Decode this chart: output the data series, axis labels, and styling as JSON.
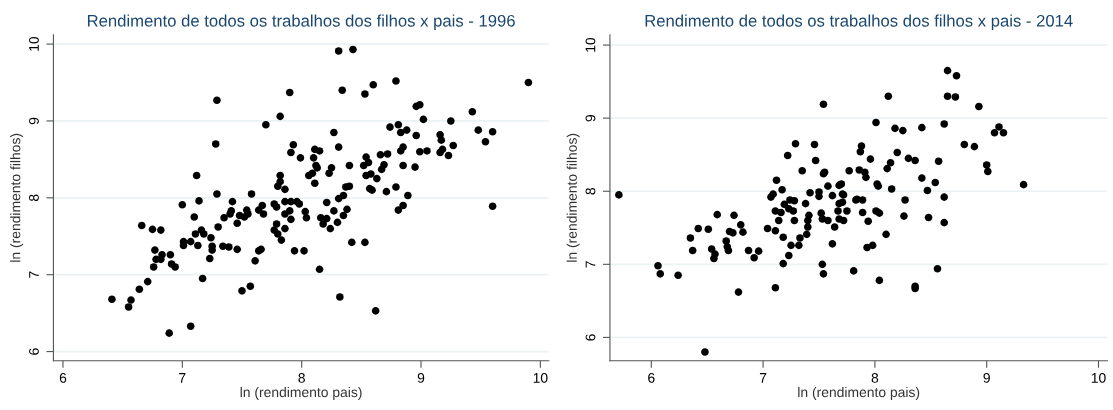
{
  "chart_data": [
    {
      "type": "scatter",
      "title": "Rendimento de todos os trabalhos dos filhos x pais - 1996",
      "xlabel": "ln (rendimento pais)",
      "ylabel": "ln (rendimento filhos)",
      "color": "#000000",
      "marker": "circle",
      "grid": "y",
      "xlim": [
        5.92,
        10.07
      ],
      "ylim": [
        5.88,
        10.12
      ],
      "xticks": [
        6,
        7,
        8,
        9,
        10
      ],
      "yticks": [
        6,
        7,
        8,
        9,
        10
      ],
      "x": [
        6.41,
        6.57,
        6.55,
        6.64,
        6.66,
        6.71,
        6.75,
        6.77,
        6.76,
        6.78,
        6.82,
        6.83,
        6.82,
        6.9,
        6.91,
        6.94,
        6.89,
        7.0,
        7.01,
        7.01,
        7.07,
        7.07,
        7.1,
        7.12,
        7.13,
        7.14,
        7.16,
        7.17,
        7.18,
        7.11,
        7.23,
        7.24,
        7.25,
        7.25,
        7.29,
        7.28,
        7.29,
        7.3,
        7.34,
        7.35,
        7.39,
        7.4,
        7.41,
        7.42,
        7.46,
        7.46,
        7.5,
        7.48,
        7.52,
        7.54,
        7.55,
        7.57,
        7.58,
        7.61,
        7.64,
        7.64,
        7.66,
        7.68,
        7.67,
        7.7,
        7.77,
        7.77,
        7.79,
        7.8,
        7.79,
        7.82,
        7.8,
        7.82,
        7.82,
        7.9,
        7.86,
        7.93,
        7.91,
        7.99,
        7.86,
        7.91,
        7.96,
        7.98,
        7.9,
        7.86,
        7.91,
        7.86,
        7.83,
        7.94,
        8.02,
        8.03,
        8.04,
        8.1,
        8.11,
        8.15,
        8.12,
        8.09,
        8.06,
        8.11,
        8.13,
        8.21,
        8.16,
        8.18,
        8.21,
        8.24,
        8.27,
        8.15,
        8.31,
        8.43,
        8.34,
        8.27,
        8.31,
        8.23,
        8.25,
        8.3,
        8.31,
        8.35,
        8.37,
        8.4,
        8.35,
        8.38,
        8.4,
        8.42,
        8.32,
        8.53,
        8.53,
        8.6,
        8.62,
        8.54,
        8.52,
        8.56,
        8.54,
        8.58,
        8.63,
        8.57,
        8.59,
        8.66,
        8.72,
        8.67,
        8.69,
        8.71,
        8.79,
        8.74,
        8.81,
        8.83,
        8.88,
        8.85,
        8.83,
        8.85,
        8.79,
        8.81,
        8.85,
        8.89,
        8.96,
        8.96,
        8.99,
        9.02,
        8.99,
        9.05,
        8.95,
        9.16,
        9.17,
        9.18,
        9.16,
        9.23,
        9.27,
        9.25,
        9.43,
        9.48,
        9.54,
        9.6,
        9.6,
        9.9
      ],
      "values": [
        6.68,
        6.67,
        6.58,
        6.81,
        7.64,
        6.91,
        7.59,
        7.32,
        7.1,
        7.2,
        7.58,
        7.26,
        7.2,
        7.26,
        7.14,
        7.1,
        6.24,
        7.91,
        7.43,
        7.38,
        6.33,
        7.43,
        7.75,
        8.29,
        7.38,
        7.96,
        7.58,
        6.95,
        7.53,
        7.53,
        7.21,
        7.48,
        7.37,
        7.32,
        9.27,
        8.7,
        8.05,
        7.62,
        7.37,
        7.74,
        7.36,
        7.79,
        7.83,
        7.95,
        7.67,
        7.33,
        6.79,
        7.77,
        7.75,
        7.84,
        7.79,
        6.85,
        8.05,
        7.18,
        7.84,
        7.31,
        7.33,
        7.79,
        7.9,
        8.95,
        7.92,
        7.58,
        7.66,
        8.15,
        7.88,
        9.06,
        7.53,
        8.29,
        8.21,
        9.37,
        8.11,
        8.69,
        8.59,
        8.52,
        7.95,
        7.95,
        7.95,
        7.92,
        7.83,
        7.79,
        7.72,
        7.6,
        7.45,
        7.31,
        7.31,
        7.82,
        7.74,
        8.52,
        8.63,
        8.61,
        8.42,
        8.32,
        8.29,
        8.19,
        8.39,
        7.94,
        7.74,
        7.66,
        7.73,
        7.6,
        7.83,
        7.07,
        9.91,
        9.93,
        9.4,
        8.85,
        8.66,
        8.32,
        8.39,
        7.68,
        7.99,
        8.03,
        8.14,
        8.15,
        7.77,
        7.85,
        8.42,
        7.42,
        6.71,
        7.42,
        9.35,
        9.47,
        6.53,
        8.53,
        8.42,
        8.46,
        8.29,
        8.31,
        8.25,
        8.12,
        8.1,
        8.56,
        8.57,
        8.37,
        8.43,
        8.08,
        9.52,
        8.92,
        8.95,
        8.85,
        8.88,
        8.66,
        8.61,
        8.42,
        8.14,
        7.84,
        7.9,
        8.03,
        8.81,
        9.19,
        9.21,
        9.02,
        8.6,
        8.61,
        8.4,
        8.82,
        8.75,
        8.63,
        8.59,
        8.55,
        8.68,
        9.0,
        9.12,
        8.88,
        8.73,
        8.86,
        7.89,
        9.5
      ]
    },
    {
      "type": "scatter",
      "title": "Rendimento de todos os trabalhos dos filhos x pais - 2014",
      "xlabel": "ln (rendimento pais)",
      "ylabel": "ln (rendimento filhos)",
      "color": "#000000",
      "marker": "circle",
      "grid": "y",
      "xlim": [
        5.63,
        10.08
      ],
      "ylim": [
        5.68,
        10.14
      ],
      "xticks": [
        6,
        7,
        8,
        9,
        10
      ],
      "yticks": [
        6,
        7,
        8,
        9,
        10
      ],
      "x": [
        5.71,
        6.06,
        6.08,
        6.24,
        6.35,
        6.37,
        6.42,
        6.48,
        6.51,
        6.54,
        6.57,
        6.56,
        6.59,
        6.67,
        6.68,
        6.69,
        6.7,
        6.73,
        6.74,
        6.78,
        6.8,
        6.82,
        6.87,
        6.92,
        6.96,
        7.04,
        7.07,
        7.09,
        7.11,
        7.11,
        7.11,
        7.12,
        7.14,
        7.17,
        7.16,
        7.18,
        7.18,
        7.19,
        7.22,
        7.23,
        7.23,
        7.24,
        7.25,
        7.27,
        7.28,
        7.28,
        7.29,
        7.32,
        7.33,
        7.35,
        7.38,
        7.39,
        7.4,
        7.4,
        7.41,
        7.42,
        7.46,
        7.47,
        7.5,
        7.5,
        7.54,
        7.54,
        7.53,
        7.54,
        7.55,
        7.52,
        7.53,
        7.58,
        7.58,
        7.62,
        7.64,
        7.67,
        7.68,
        7.7,
        7.71,
        7.71,
        7.68,
        7.72,
        7.68,
        7.72,
        7.62,
        7.75,
        7.77,
        7.81,
        7.83,
        7.84,
        7.89,
        7.86,
        7.87,
        7.88,
        7.91,
        7.92,
        7.89,
        7.94,
        7.93,
        7.98,
        7.96,
        8.01,
        8.01,
        8.04,
        8.02,
        8.03,
        8.04,
        8.12,
        8.11,
        8.14,
        8.15,
        8.1,
        8.18,
        8.2,
        8.25,
        8.3,
        8.27,
        8.26,
        8.36,
        8.36,
        8.36,
        8.42,
        8.42,
        8.47,
        8.48,
        8.54,
        8.57,
        8.56,
        8.62,
        8.62,
        8.62,
        8.65,
        8.65,
        8.73,
        8.72,
        8.8,
        8.89,
        8.93,
        9.0,
        9.01,
        9.07,
        9.11,
        9.15,
        9.33
      ],
      "values": [
        7.95,
        6.98,
        6.87,
        6.85,
        7.36,
        7.19,
        7.49,
        5.8,
        7.48,
        7.21,
        7.14,
        7.08,
        7.68,
        7.32,
        7.24,
        7.19,
        7.45,
        7.43,
        7.67,
        6.62,
        7.54,
        7.44,
        7.19,
        7.09,
        7.18,
        7.49,
        7.92,
        7.96,
        6.68,
        7.46,
        7.73,
        8.15,
        7.6,
        8.02,
        7.71,
        7.37,
        7.01,
        7.82,
        8.49,
        7.76,
        7.12,
        7.88,
        7.26,
        7.73,
        7.6,
        7.87,
        8.65,
        7.26,
        7.36,
        8.28,
        7.83,
        7.41,
        7.51,
        7.6,
        7.67,
        7.98,
        8.64,
        8.42,
        7.99,
        7.93,
        9.19,
        6.87,
        7.0,
        8.24,
        8.26,
        7.7,
        7.62,
        8.07,
        7.6,
        7.94,
        7.51,
        7.73,
        8.08,
        8.1,
        7.96,
        7.85,
        7.83,
        7.95,
        7.62,
        7.6,
        7.28,
        7.73,
        8.28,
        6.91,
        7.88,
        7.89,
        7.88,
        8.29,
        8.54,
        8.62,
        8.26,
        8.19,
        7.71,
        7.59,
        7.23,
        7.26,
        8.44,
        8.94,
        7.73,
        7.7,
        8.1,
        8.07,
        6.78,
        9.3,
        8.31,
        8.39,
        8.03,
        7.41,
        8.86,
        8.53,
        8.83,
        8.45,
        7.88,
        7.66,
        8.42,
        6.7,
        6.67,
        8.18,
        8.87,
        8.01,
        7.64,
        8.12,
        8.41,
        6.94,
        8.92,
        7.92,
        7.57,
        9.65,
        9.3,
        9.58,
        9.29,
        8.64,
        8.61,
        9.16,
        8.36,
        8.27,
        8.8,
        8.88,
        8.8,
        8.09
      ]
    }
  ]
}
